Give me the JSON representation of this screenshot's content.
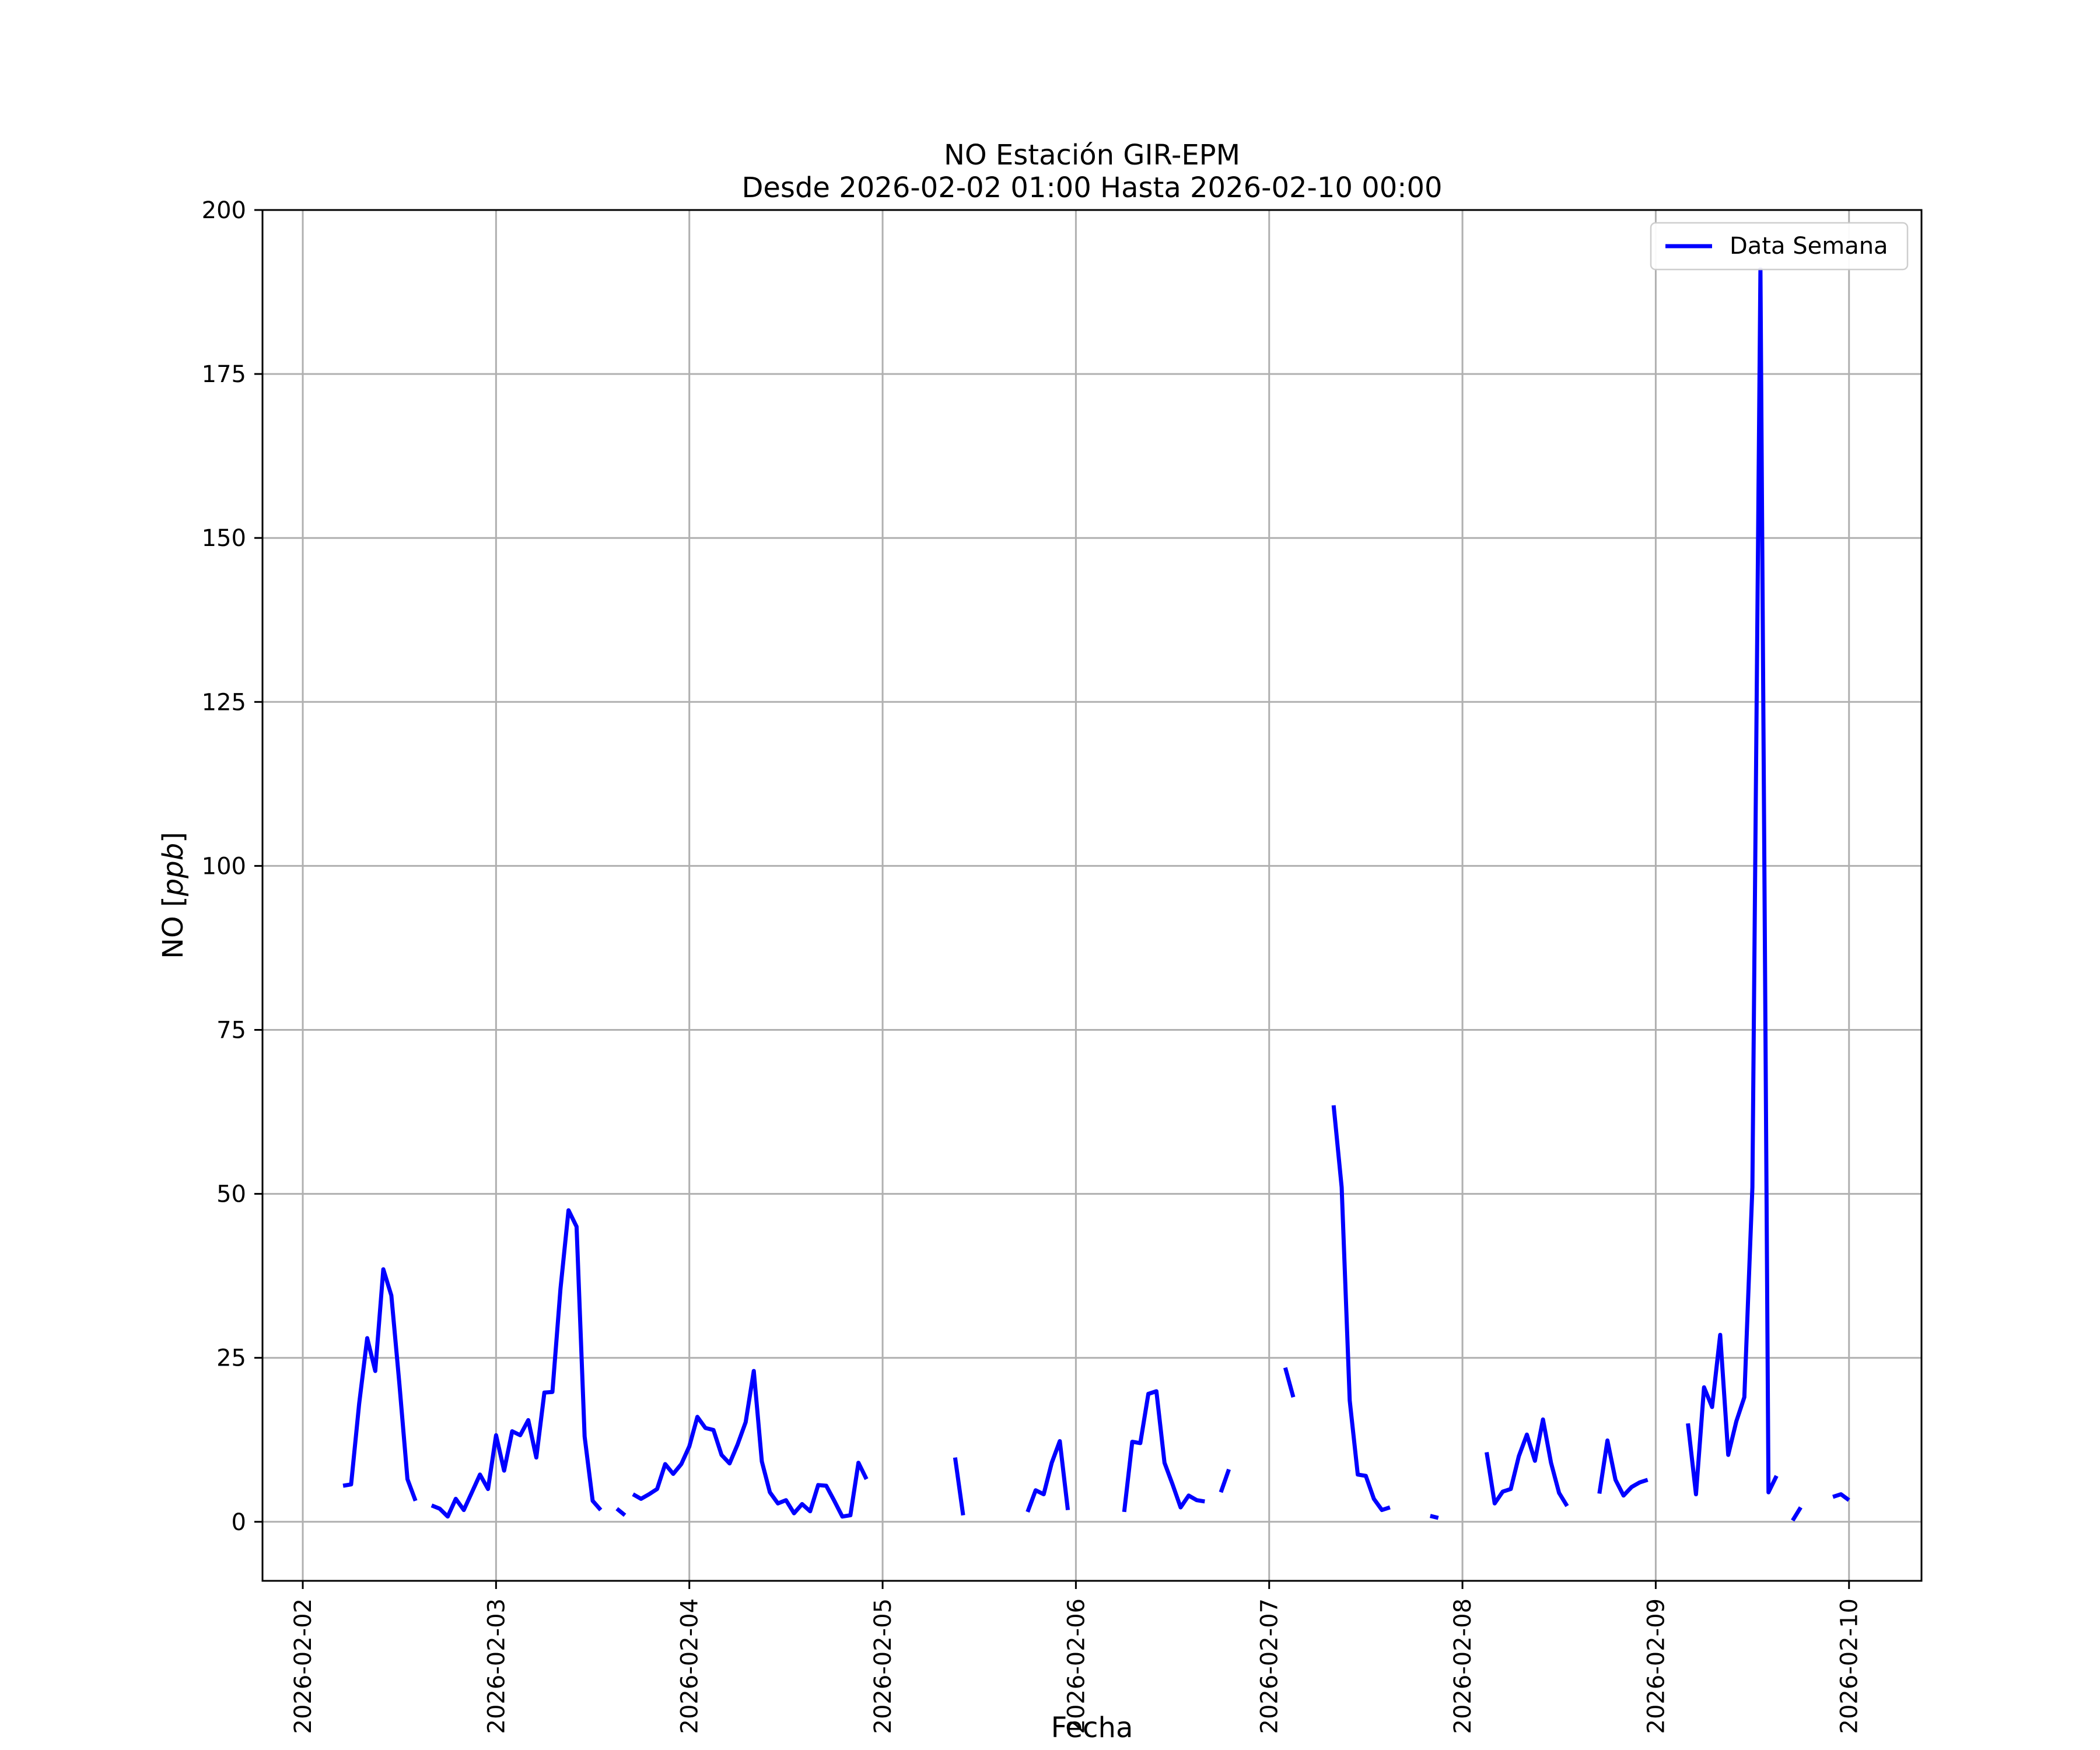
{
  "chart_data": {
    "type": "line",
    "title": "NO Estación GIR-EPM",
    "subtitle": "Desde 2026-02-02 01:00 Hasta 2026-02-10 00:00",
    "xlabel": "Fecha",
    "ylabel": "NO [ppb]",
    "ylabel_main": "NO [",
    "ylabel_unit": "ppb",
    "ylabel_close": "]",
    "ylim": [
      -9,
      200
    ],
    "xlim": [
      "2026-02-01 19:00",
      "2026-02-10 09:00"
    ],
    "yticks": [
      0,
      25,
      50,
      75,
      100,
      125,
      150,
      175,
      200
    ],
    "xticks": [
      "2026-02-02",
      "2026-02-03",
      "2026-02-04",
      "2026-02-05",
      "2026-02-06",
      "2026-02-07",
      "2026-02-08",
      "2026-02-09",
      "2026-02-10"
    ],
    "grid": true,
    "legend_position": "top-right",
    "series": [
      {
        "name": "Data Semana",
        "color": "#0000ff",
        "segments": [
          [
            [
              "2026-02-02 05:00",
              5.5
            ],
            [
              "2026-02-02 06:00",
              5.7
            ],
            [
              "2026-02-02 07:00",
              18.0
            ],
            [
              "2026-02-02 08:00",
              28.0
            ],
            [
              "2026-02-02 09:00",
              23.0
            ],
            [
              "2026-02-02 10:00",
              38.5
            ],
            [
              "2026-02-02 11:00",
              34.5
            ],
            [
              "2026-02-02 12:00",
              21.0
            ],
            [
              "2026-02-02 13:00",
              6.5
            ],
            [
              "2026-02-02 14:00",
              3.2
            ]
          ],
          [
            [
              "2026-02-02 16:00",
              2.5
            ],
            [
              "2026-02-02 17:00",
              2.0
            ],
            [
              "2026-02-02 18:00",
              0.8
            ],
            [
              "2026-02-02 19:00",
              3.5
            ],
            [
              "2026-02-02 20:00",
              1.8
            ],
            [
              "2026-02-02 21:00",
              4.5
            ],
            [
              "2026-02-02 22:00",
              7.2
            ],
            [
              "2026-02-02 23:00",
              5.0
            ],
            [
              "2026-02-03 00:00",
              13.2
            ],
            [
              "2026-02-03 01:00",
              7.8
            ],
            [
              "2026-02-03 02:00",
              13.8
            ],
            [
              "2026-02-03 03:00",
              13.2
            ],
            [
              "2026-02-03 04:00",
              15.5
            ],
            [
              "2026-02-03 05:00",
              9.8
            ],
            [
              "2026-02-03 06:00",
              19.7
            ],
            [
              "2026-02-03 07:00",
              19.8
            ],
            [
              "2026-02-03 08:00",
              35.5
            ],
            [
              "2026-02-03 09:00",
              47.5
            ],
            [
              "2026-02-03 10:00",
              45.0
            ],
            [
              "2026-02-03 11:00",
              13.0
            ],
            [
              "2026-02-03 12:00",
              3.2
            ],
            [
              "2026-02-03 13:00",
              1.8
            ]
          ],
          [
            [
              "2026-02-03 15:00",
              2.0
            ],
            [
              "2026-02-03 16:00",
              1.0
            ]
          ],
          [
            [
              "2026-02-03 17:00",
              4.2
            ],
            [
              "2026-02-03 18:00",
              3.5
            ],
            [
              "2026-02-03 19:00",
              4.2
            ],
            [
              "2026-02-03 20:00",
              5.0
            ],
            [
              "2026-02-03 21:00",
              8.8
            ],
            [
              "2026-02-03 22:00",
              7.3
            ],
            [
              "2026-02-03 23:00",
              8.8
            ],
            [
              "2026-02-04 00:00",
              11.5
            ],
            [
              "2026-02-04 01:00",
              16.0
            ],
            [
              "2026-02-04 02:00",
              14.3
            ],
            [
              "2026-02-04 03:00",
              14.0
            ],
            [
              "2026-02-04 04:00",
              10.2
            ],
            [
              "2026-02-04 05:00",
              8.9
            ],
            [
              "2026-02-04 06:00",
              11.8
            ],
            [
              "2026-02-04 07:00",
              15.2
            ],
            [
              "2026-02-04 08:00",
              23.0
            ],
            [
              "2026-02-04 09:00",
              9.2
            ],
            [
              "2026-02-04 10:00",
              4.5
            ],
            [
              "2026-02-04 11:00",
              2.8
            ],
            [
              "2026-02-04 12:00",
              3.3
            ],
            [
              "2026-02-04 13:00",
              1.3
            ],
            [
              "2026-02-04 14:00",
              2.7
            ],
            [
              "2026-02-04 15:00",
              1.6
            ],
            [
              "2026-02-04 16:00",
              5.6
            ],
            [
              "2026-02-04 17:00",
              5.5
            ],
            [
              "2026-02-04 18:00",
              3.2
            ],
            [
              "2026-02-04 19:00",
              0.8
            ],
            [
              "2026-02-04 20:00",
              1.0
            ],
            [
              "2026-02-04 21:00",
              9.0
            ],
            [
              "2026-02-04 22:00",
              6.5
            ]
          ],
          [
            [
              "2026-02-05 09:00",
              9.8
            ],
            [
              "2026-02-05 10:00",
              1.0
            ]
          ],
          [
            [
              "2026-02-05 18:00",
              1.5
            ],
            [
              "2026-02-05 19:00",
              4.8
            ],
            [
              "2026-02-05 20:00",
              4.2
            ],
            [
              "2026-02-05 21:00",
              9.0
            ],
            [
              "2026-02-05 22:00",
              12.3
            ],
            [
              "2026-02-05 23:00",
              1.8
            ]
          ],
          [
            [
              "2026-02-06 06:00",
              1.5
            ],
            [
              "2026-02-06 07:00",
              12.2
            ],
            [
              "2026-02-06 08:00",
              12.0
            ],
            [
              "2026-02-06 09:00",
              19.5
            ],
            [
              "2026-02-06 10:00",
              19.9
            ],
            [
              "2026-02-06 11:00",
              9.0
            ],
            [
              "2026-02-06 12:00",
              5.7
            ],
            [
              "2026-02-06 13:00",
              2.2
            ],
            [
              "2026-02-06 14:00",
              4.0
            ],
            [
              "2026-02-06 15:00",
              3.3
            ],
            [
              "2026-02-06 16:00",
              3.1
            ]
          ],
          [
            [
              "2026-02-06 18:00",
              4.5
            ],
            [
              "2026-02-06 19:00",
              8.0
            ]
          ],
          [
            [
              "2026-02-07 02:00",
              23.5
            ],
            [
              "2026-02-07 03:00",
              19.0
            ]
          ],
          [
            [
              "2026-02-07 08:00",
              63.5
            ],
            [
              "2026-02-07 09:00",
              51.0
            ],
            [
              "2026-02-07 10:00",
              18.5
            ],
            [
              "2026-02-07 11:00",
              7.2
            ],
            [
              "2026-02-07 12:00",
              7.0
            ],
            [
              "2026-02-07 13:00",
              3.5
            ],
            [
              "2026-02-07 14:00",
              1.8
            ],
            [
              "2026-02-07 15:00",
              2.2
            ]
          ],
          [
            [
              "2026-02-07 20:00",
              0.9
            ],
            [
              "2026-02-07 21:00",
              0.6
            ]
          ],
          [
            [
              "2026-02-08 03:00",
              10.6
            ],
            [
              "2026-02-08 04:00",
              2.8
            ],
            [
              "2026-02-08 05:00",
              4.6
            ],
            [
              "2026-02-08 06:00",
              5.0
            ],
            [
              "2026-02-08 07:00",
              10.0
            ],
            [
              "2026-02-08 08:00",
              13.3
            ],
            [
              "2026-02-08 09:00",
              9.3
            ],
            [
              "2026-02-08 10:00",
              15.6
            ],
            [
              "2026-02-08 11:00",
              9.0
            ],
            [
              "2026-02-08 12:00",
              4.4
            ],
            [
              "2026-02-08 13:00",
              2.4
            ]
          ],
          [
            [
              "2026-02-08 17:00",
              4.3
            ],
            [
              "2026-02-08 18:00",
              12.4
            ],
            [
              "2026-02-08 19:00",
              6.4
            ],
            [
              "2026-02-08 20:00",
              4.0
            ],
            [
              "2026-02-08 21:00",
              5.3
            ],
            [
              "2026-02-08 22:00",
              6.0
            ],
            [
              "2026-02-08 23:00",
              6.4
            ]
          ],
          [
            [
              "2026-02-09 04:00",
              15.0
            ],
            [
              "2026-02-09 05:00",
              4.2
            ],
            [
              "2026-02-09 06:00",
              20.5
            ],
            [
              "2026-02-09 07:00",
              17.5
            ],
            [
              "2026-02-09 08:00",
              28.5
            ],
            [
              "2026-02-09 09:00",
              10.2
            ],
            [
              "2026-02-09 10:00",
              15.3
            ],
            [
              "2026-02-09 11:00",
              19.0
            ],
            [
              "2026-02-09 12:00",
              51.0
            ],
            [
              "2026-02-09 13:00",
              191.0
            ],
            [
              "2026-02-09 14:00",
              4.5
            ],
            [
              "2026-02-09 15:00",
              7.0
            ]
          ],
          [
            [
              "2026-02-09 17:00",
              0.2
            ],
            [
              "2026-02-09 18:00",
              2.2
            ]
          ],
          [
            [
              "2026-02-09 22:00",
              3.8
            ],
            [
              "2026-02-09 23:00",
              4.2
            ],
            [
              "2026-02-10 00:00",
              3.3
            ]
          ]
        ]
      }
    ]
  }
}
